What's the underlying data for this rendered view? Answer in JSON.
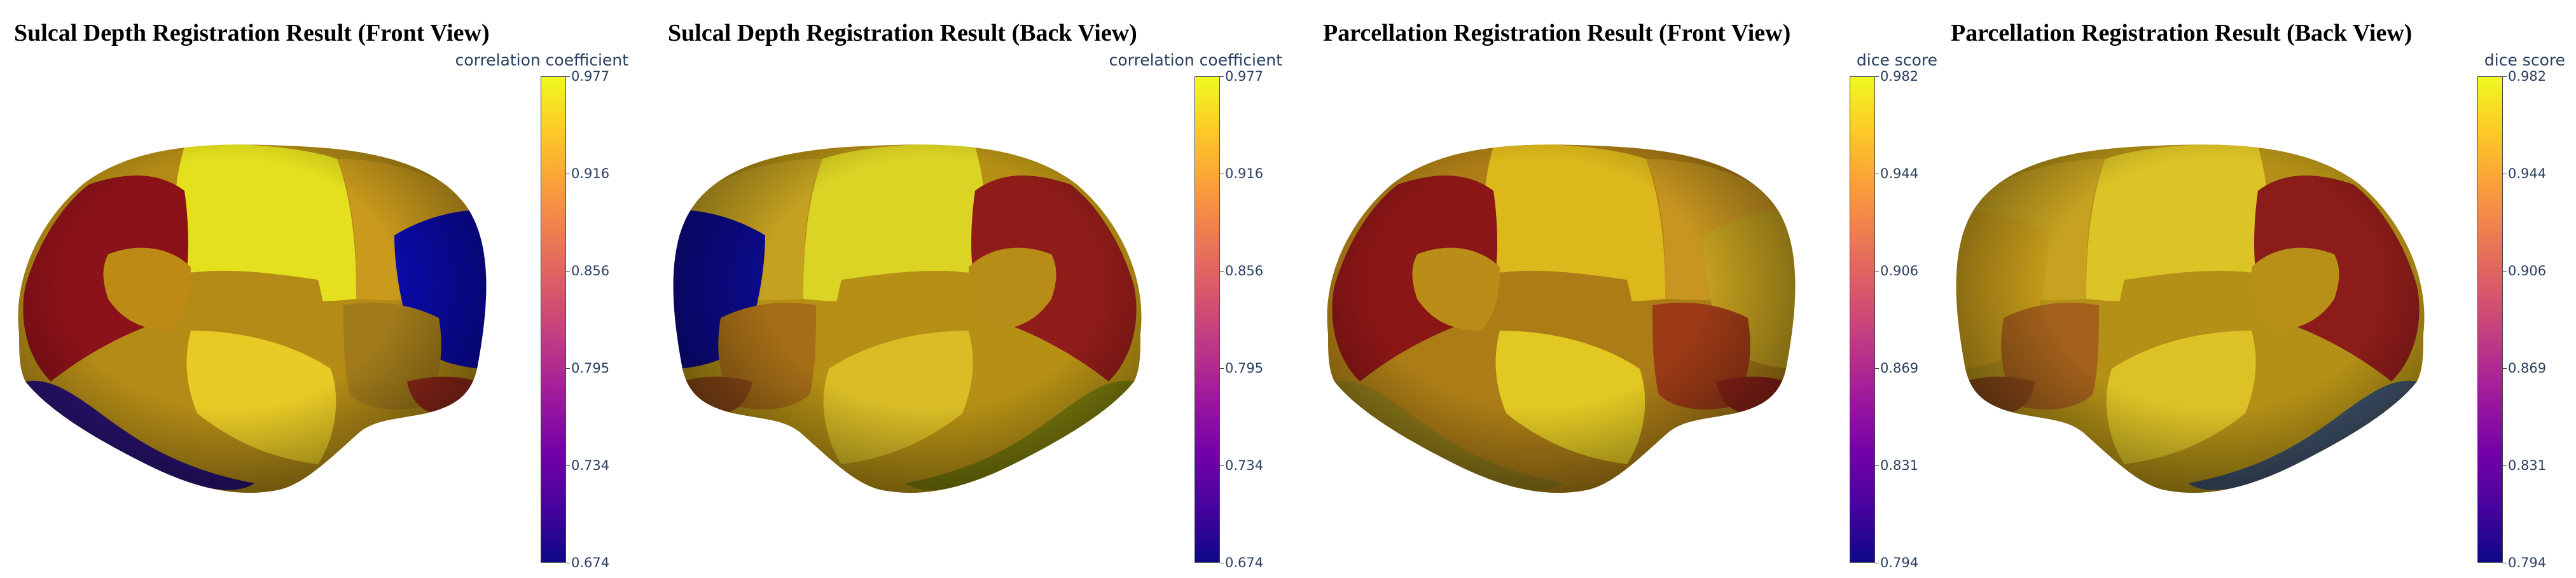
{
  "colorscale": [
    "#0d0887",
    "#46039f",
    "#7201a8",
    "#9c179e",
    "#bd3786",
    "#d8576b",
    "#ed7953",
    "#fb9f3a",
    "#fdca26",
    "#f0f921"
  ],
  "panels": [
    {
      "title": "Sulcal Depth Registration Result (Front View)",
      "view": "front",
      "colorbar_title": "correlation coefficient",
      "ticks": [
        "0.977",
        "0.916",
        "0.856",
        "0.795",
        "0.734",
        "0.674"
      ],
      "region_colors": [
        "#e4e01e",
        "#c99a1c",
        "#8a1218",
        "#0a0aa8",
        "#2a1272",
        "#b38b16",
        "#e8ca25",
        "#a17b1a",
        "#93281a",
        "#be8a16"
      ]
    },
    {
      "title": "Sulcal Depth Registration Result (Back View)",
      "view": "back",
      "colorbar_title": "correlation coefficient",
      "ticks": [
        "0.977",
        "0.916",
        "0.856",
        "0.795",
        "0.734",
        "0.674"
      ],
      "region_colors": [
        "#dcd424",
        "#c4a120",
        "#8f1c19",
        "#0c0a8a",
        "#7a7a0c",
        "#b59014",
        "#d9bc26",
        "#a46d16",
        "#8d4a16",
        "#b78d18"
      ]
    },
    {
      "title": "Parcellation Registration Result (Front View)",
      "view": "front",
      "colorbar_title": "dice score",
      "ticks": [
        "0.982",
        "0.944",
        "0.906",
        "0.869",
        "0.831",
        "0.794"
      ],
      "region_colors": [
        "#dcb81c",
        "#c79520",
        "#8a1616",
        "#c4a01e",
        "#8f7b18",
        "#ac7d16",
        "#e2c823",
        "#9c3a16",
        "#8e2318",
        "#b98d18"
      ]
    },
    {
      "title": "Parcellation Registration Result (Back View)",
      "view": "back",
      "colorbar_title": "dice score",
      "ticks": [
        "0.982",
        "0.944",
        "0.906",
        "0.869",
        "0.831",
        "0.794"
      ],
      "region_colors": [
        "#dcc426",
        "#c6a220",
        "#8b1c19",
        "#c69b1a",
        "#3e5068",
        "#b49116",
        "#ddc226",
        "#a3611b",
        "#8c4a18",
        "#b89018"
      ]
    }
  ],
  "chart_data": [
    {
      "type": "heatmap",
      "title": "Sulcal Depth Registration Result (Front View)",
      "colorbar_title": "correlation coefficient",
      "range": [
        0.674,
        0.977
      ],
      "ticks": [
        0.977,
        0.916,
        0.856,
        0.795,
        0.734,
        0.674
      ]
    },
    {
      "type": "heatmap",
      "title": "Sulcal Depth Registration Result (Back View)",
      "colorbar_title": "correlation coefficient",
      "range": [
        0.674,
        0.977
      ],
      "ticks": [
        0.977,
        0.916,
        0.856,
        0.795,
        0.734,
        0.674
      ]
    },
    {
      "type": "heatmap",
      "title": "Parcellation Registration Result (Front View)",
      "colorbar_title": "dice score",
      "range": [
        0.794,
        0.982
      ],
      "ticks": [
        0.982,
        0.944,
        0.906,
        0.869,
        0.831,
        0.794
      ]
    },
    {
      "type": "heatmap",
      "title": "Parcellation Registration Result (Back View)",
      "colorbar_title": "dice score",
      "range": [
        0.794,
        0.982
      ],
      "ticks": [
        0.982,
        0.944,
        0.906,
        0.869,
        0.831,
        0.794
      ]
    }
  ]
}
